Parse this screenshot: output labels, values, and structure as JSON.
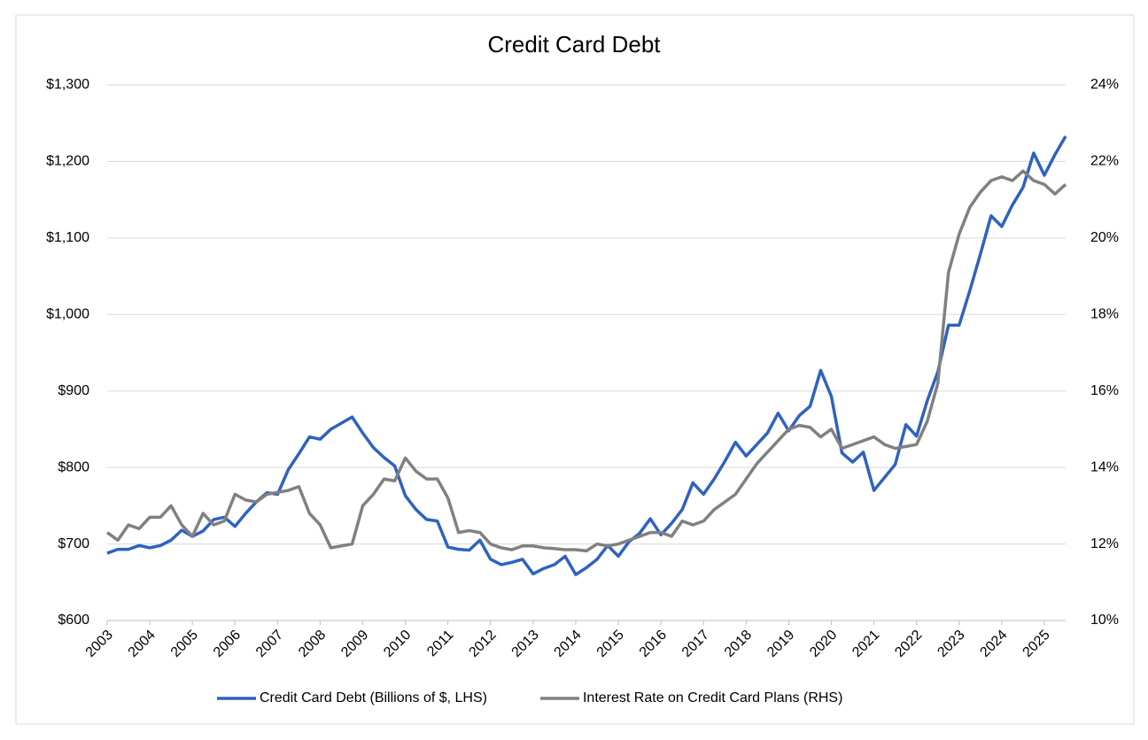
{
  "chart_data": {
    "type": "line",
    "title": "Credit Card Debt",
    "categories": [
      "2003",
      null,
      null,
      null,
      "2004",
      null,
      null,
      null,
      "2005",
      null,
      null,
      null,
      "2006",
      null,
      null,
      null,
      "2007",
      null,
      null,
      null,
      "2008",
      null,
      null,
      null,
      "2009",
      null,
      null,
      null,
      "2010",
      null,
      null,
      null,
      "2011",
      null,
      null,
      null,
      "2012",
      null,
      null,
      null,
      "2013",
      null,
      null,
      null,
      "2014",
      null,
      null,
      null,
      "2015",
      null,
      null,
      null,
      "2016",
      null,
      null,
      null,
      "2017",
      null,
      null,
      null,
      "2018",
      null,
      null,
      null,
      "2019",
      null,
      null,
      null,
      "2020",
      null,
      null,
      null,
      "2021",
      null,
      null,
      null,
      "2022",
      null,
      null,
      null,
      "2023",
      null,
      null,
      null,
      "2024",
      null,
      null,
      null,
      "2025",
      null,
      null
    ],
    "series": [
      {
        "name": "Credit Card Debt (Billions of $, LHS)",
        "color": "#2f62c0",
        "values": [
          688,
          693,
          693,
          698,
          695,
          698,
          705,
          718,
          710,
          717,
          732,
          735,
          723,
          740,
          755,
          767,
          765,
          797,
          818,
          840,
          837,
          850,
          858,
          866,
          845,
          826,
          813,
          802,
          763,
          745,
          732,
          730,
          696,
          693,
          692,
          705,
          680,
          673,
          676,
          680,
          661,
          668,
          673,
          684,
          660,
          669,
          680,
          698,
          684,
          703,
          714,
          733,
          712,
          727,
          745,
          780,
          765,
          785,
          808,
          833,
          815,
          830,
          845,
          871,
          848,
          868,
          880,
          927,
          893,
          819,
          807,
          820,
          770,
          787,
          804,
          856,
          841,
          887,
          925,
          986,
          986,
          1031,
          1079,
          1129,
          1115,
          1143,
          1166,
          1211,
          1182,
          1209,
          1233
        ]
      },
      {
        "name": "Interest Rate on Credit Card Plans (RHS)",
        "color": "#808080",
        "axis": "y2",
        "values": [
          12.3,
          12.1,
          12.5,
          12.4,
          12.7,
          12.7,
          13.0,
          12.5,
          12.2,
          12.8,
          12.5,
          12.6,
          13.3,
          13.15,
          13.1,
          13.3,
          13.35,
          13.4,
          13.5,
          12.8,
          12.5,
          11.9,
          11.95,
          12.0,
          13.0,
          13.3,
          13.7,
          13.65,
          14.25,
          13.9,
          13.7,
          13.7,
          13.2,
          12.3,
          12.35,
          12.3,
          12.0,
          11.9,
          11.85,
          11.95,
          11.95,
          11.9,
          11.88,
          11.85,
          11.85,
          11.82,
          12.0,
          11.95,
          12.0,
          12.1,
          12.2,
          12.3,
          12.3,
          12.2,
          12.6,
          12.5,
          12.6,
          12.9,
          13.1,
          13.3,
          13.7,
          14.1,
          14.4,
          14.7,
          15.0,
          15.1,
          15.05,
          14.8,
          15.0,
          14.5,
          14.6,
          14.7,
          14.8,
          14.6,
          14.5,
          14.55,
          14.6,
          15.2,
          16.2,
          19.1,
          20.1,
          20.8,
          21.2,
          21.5,
          21.6,
          21.5,
          21.75,
          21.5,
          21.4,
          21.15,
          21.4
        ]
      }
    ],
    "ylim": [
      600,
      1300
    ],
    "yticks": [
      {
        "value": 600,
        "label": "$600"
      },
      {
        "value": 700,
        "label": "$700"
      },
      {
        "value": 800,
        "label": "$800"
      },
      {
        "value": 900,
        "label": "$900"
      },
      {
        "value": 1000,
        "label": "$1,000"
      },
      {
        "value": 1100,
        "label": "$1,100"
      },
      {
        "value": 1200,
        "label": "$1,200"
      },
      {
        "value": 1300,
        "label": "$1,300"
      }
    ],
    "y2lim": [
      10,
      24
    ],
    "y2ticks": [
      {
        "value": 10,
        "label": "10%"
      },
      {
        "value": 12,
        "label": "12%"
      },
      {
        "value": 14,
        "label": "14%"
      },
      {
        "value": 16,
        "label": "16%"
      },
      {
        "value": 18,
        "label": "18%"
      },
      {
        "value": 20,
        "label": "20%"
      },
      {
        "value": 22,
        "label": "22%"
      },
      {
        "value": 24,
        "label": "24%"
      }
    ],
    "grid": true,
    "legend": "bottom"
  }
}
